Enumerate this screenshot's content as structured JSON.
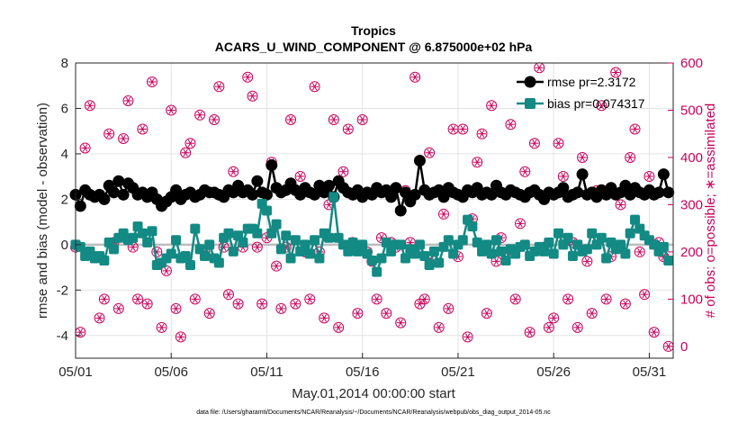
{
  "chart_data": {
    "type": "line",
    "title": "Tropics",
    "subtitle": "ACARS_U_WIND_COMPONENT @ 6.875000e+02 hPa",
    "xlabel": "May.01,2014 00:00:00 start",
    "ylabel": "rmse and bias (model - observation)",
    "y2label": "# of obs: o=possible; ∗=assimilated",
    "footnote": "data file: /Users/gharamti/Documents/NCAR/Reanalysis/~/Documents/NCAR/Reanalysis/webpub/obs_diag_output_2014-05.nc",
    "x_range": [
      0,
      31.25
    ],
    "xticks": [
      0,
      5,
      10,
      15,
      20,
      25,
      30
    ],
    "xtick_labels": [
      "05/01",
      "05/06",
      "05/11",
      "05/16",
      "05/21",
      "05/26",
      "05/31"
    ],
    "ylim": [
      -5,
      8
    ],
    "yticks": [
      -4,
      -2,
      0,
      2,
      4,
      6,
      8
    ],
    "ytick_labels": [
      "-4",
      "-2",
      "0",
      "2",
      "4",
      "6",
      "8"
    ],
    "y2lim": [
      -25,
      600
    ],
    "y2ticks": [
      0,
      100,
      200,
      300,
      400,
      500,
      600
    ],
    "y2tick_labels": [
      "0",
      "100",
      "200",
      "300",
      "400",
      "500",
      "600"
    ],
    "grid": true,
    "legend": {
      "position": "top-right",
      "entries": [
        "rmse pr=2.3172",
        "bias pr=0.074317"
      ]
    },
    "colors": {
      "rmse": "#000000",
      "bias": "#138a84",
      "obs": "#c8005a",
      "zero_line": "#bdbdbd"
    },
    "series": [
      {
        "name": "rmse pr=2.3172",
        "x": [
          0.0,
          0.25,
          0.5,
          0.75,
          1.0,
          1.25,
          1.5,
          1.75,
          2.0,
          2.25,
          2.5,
          2.75,
          3.0,
          3.25,
          3.5,
          3.75,
          4.0,
          4.25,
          4.5,
          4.75,
          5.0,
          5.25,
          5.5,
          5.75,
          6.0,
          6.25,
          6.5,
          6.75,
          7.0,
          7.25,
          7.5,
          7.75,
          8.0,
          8.25,
          8.5,
          8.75,
          9.0,
          9.25,
          9.5,
          9.75,
          10.0,
          10.25,
          10.5,
          10.75,
          11.0,
          11.25,
          11.5,
          11.75,
          12.0,
          12.25,
          12.5,
          12.75,
          13.0,
          13.25,
          13.5,
          13.75,
          14.0,
          14.25,
          14.5,
          14.75,
          15.0,
          15.25,
          15.5,
          15.75,
          16.0,
          16.25,
          16.5,
          16.75,
          17.0,
          17.25,
          17.5,
          17.75,
          18.0,
          18.25,
          18.5,
          18.75,
          19.0,
          19.25,
          19.5,
          19.75,
          20.0,
          20.25,
          20.5,
          20.75,
          21.0,
          21.25,
          21.5,
          21.75,
          22.0,
          22.25,
          22.5,
          22.75,
          23.0,
          23.25,
          23.5,
          23.75,
          24.0,
          24.25,
          24.5,
          24.75,
          25.0,
          25.25,
          25.5,
          25.75,
          26.0,
          26.25,
          26.5,
          26.75,
          27.0,
          27.25,
          27.5,
          27.75,
          28.0,
          28.25,
          28.5,
          28.75,
          29.0,
          29.25,
          29.5,
          29.75,
          30.0,
          30.25,
          30.5,
          30.75,
          31.0
        ],
        "y": [
          2.2,
          1.7,
          2.4,
          2.2,
          2.1,
          2.2,
          2.0,
          2.6,
          2.3,
          2.8,
          2.2,
          2.7,
          2.5,
          2.2,
          2.3,
          2.1,
          2.3,
          2.0,
          1.7,
          1.9,
          2.1,
          2.4,
          2.0,
          2.2,
          2.3,
          2.1,
          2.2,
          2.4,
          2.3,
          2.3,
          2.2,
          2.1,
          2.4,
          2.3,
          2.6,
          2.3,
          2.4,
          2.2,
          2.8,
          2.3,
          2.2,
          3.5,
          2.5,
          2.3,
          2.4,
          2.7,
          2.4,
          2.2,
          2.5,
          2.3,
          2.2,
          2.6,
          2.3,
          2.6,
          2.1,
          2.8,
          2.5,
          2.3,
          2.2,
          2.4,
          2.1,
          2.3,
          2.2,
          2.5,
          2.3,
          2.4,
          2.1,
          2.5,
          1.5,
          2.3,
          1.9,
          2.2,
          3.7,
          2.4,
          2.2,
          2.3,
          2.4,
          2.1,
          2.5,
          2.3,
          2.2,
          2.1,
          2.4,
          2.3,
          2.5,
          2.2,
          2.3,
          2.2,
          2.6,
          2.3,
          2.2,
          2.4,
          2.3,
          2.2,
          2.1,
          2.3,
          2.4,
          2.2,
          2.0,
          2.3,
          2.2,
          2.3,
          2.5,
          2.1,
          2.2,
          2.3,
          3.1,
          2.2,
          2.3,
          2.1,
          2.4,
          2.2,
          2.5,
          2.2,
          2.3,
          2.6,
          2.2,
          2.5,
          2.3,
          2.2,
          2.4,
          2.2,
          2.3,
          3.1,
          2.3
        ]
      },
      {
        "name": "bias pr=0.074317",
        "x": [
          0.0,
          0.25,
          0.5,
          0.75,
          1.0,
          1.25,
          1.5,
          1.75,
          2.0,
          2.25,
          2.5,
          2.75,
          3.0,
          3.25,
          3.5,
          3.75,
          4.0,
          4.25,
          4.5,
          4.75,
          5.0,
          5.25,
          5.5,
          5.75,
          6.0,
          6.25,
          6.5,
          6.75,
          7.0,
          7.25,
          7.5,
          7.75,
          8.0,
          8.25,
          8.5,
          8.75,
          9.0,
          9.25,
          9.5,
          9.75,
          10.0,
          10.25,
          10.5,
          10.75,
          11.0,
          11.25,
          11.5,
          11.75,
          12.0,
          12.25,
          12.5,
          12.75,
          13.0,
          13.25,
          13.5,
          13.75,
          14.0,
          14.25,
          14.5,
          14.75,
          15.0,
          15.25,
          15.5,
          15.75,
          16.0,
          16.25,
          16.5,
          16.75,
          17.0,
          17.25,
          17.5,
          17.75,
          18.0,
          18.25,
          18.5,
          18.75,
          19.0,
          19.25,
          19.5,
          19.75,
          20.0,
          20.25,
          20.5,
          20.75,
          21.0,
          21.25,
          21.5,
          21.75,
          22.0,
          22.25,
          22.5,
          22.75,
          23.0,
          23.25,
          23.5,
          23.75,
          24.0,
          24.25,
          24.5,
          24.75,
          25.0,
          25.25,
          25.5,
          25.75,
          26.0,
          26.25,
          26.5,
          26.75,
          27.0,
          27.25,
          27.5,
          27.75,
          28.0,
          28.25,
          28.5,
          28.75,
          29.0,
          29.25,
          29.5,
          29.75,
          30.0,
          30.25,
          30.5,
          30.75,
          31.0
        ],
        "y": [
          0.0,
          -0.1,
          -0.5,
          -0.3,
          -0.6,
          -0.5,
          -0.7,
          0.1,
          -0.2,
          0.3,
          0.5,
          0.2,
          0.3,
          0.8,
          0.5,
          0.1,
          0.6,
          -0.9,
          -0.8,
          -0.6,
          -0.4,
          0.2,
          -0.6,
          -0.5,
          -0.9,
          0.7,
          -0.2,
          -0.5,
          0.0,
          -0.6,
          -0.8,
          0.3,
          0.5,
          -0.3,
          0.4,
          0.1,
          0.7,
          0.7,
          0.5,
          1.8,
          1.5,
          0.5,
          0.9,
          -0.2,
          0.4,
          -0.6,
          0.2,
          -0.3,
          0.0,
          -0.4,
          0.2,
          -0.6,
          0.5,
          0.3,
          2.1,
          0.3,
          0.0,
          -0.3,
          0.1,
          -0.3,
          0.0,
          -0.4,
          -0.7,
          -1.2,
          -0.6,
          0.1,
          -0.3,
          0.0,
          0.0,
          -0.6,
          -0.2,
          -0.4,
          0.0,
          -0.5,
          -0.9,
          -0.3,
          -0.8,
          -0.1,
          0.2,
          -0.4,
          0.0,
          0.2,
          1.1,
          0.8,
          0.1,
          -0.3,
          0.0,
          -0.4,
          0.2,
          -0.3,
          -0.7,
          -0.2,
          -0.4,
          -0.1,
          0.0,
          -0.5,
          -0.3,
          -0.1,
          -0.3,
          0.1,
          -0.4,
          0.5,
          0.0,
          0.3,
          -0.5,
          0.0,
          -0.3,
          -0.2,
          0.5,
          0.0,
          0.3,
          -0.6,
          0.1,
          -0.2,
          0.0,
          -0.4,
          0.5,
          1.1,
          0.7,
          0.4,
          0.2,
          0.0,
          -0.3,
          -0.1,
          -0.7
        ]
      },
      {
        "name": "# of obs possible",
        "axis": "right",
        "marker": "circle",
        "x": [
          0.0,
          0.25,
          0.5,
          0.75,
          1.0,
          1.25,
          1.5,
          1.75,
          2.0,
          2.25,
          2.5,
          2.75,
          3.0,
          3.25,
          3.5,
          3.75,
          4.0,
          4.25,
          4.5,
          4.75,
          5.0,
          5.25,
          5.5,
          5.75,
          6.0,
          6.25,
          6.5,
          6.75,
          7.0,
          7.25,
          7.5,
          7.75,
          8.0,
          8.25,
          8.5,
          8.75,
          9.0,
          9.25,
          9.5,
          9.75,
          10.0,
          10.25,
          10.5,
          10.75,
          11.0,
          11.25,
          11.5,
          11.75,
          12.0,
          12.25,
          12.5,
          12.75,
          13.0,
          13.25,
          13.5,
          13.75,
          14.0,
          14.25,
          14.5,
          14.75,
          15.0,
          15.25,
          15.5,
          15.75,
          16.0,
          16.25,
          16.5,
          16.75,
          17.0,
          17.25,
          17.5,
          17.75,
          18.0,
          18.25,
          18.5,
          18.75,
          19.0,
          19.25,
          19.5,
          19.75,
          20.0,
          20.25,
          20.5,
          20.75,
          21.0,
          21.25,
          21.5,
          21.75,
          22.0,
          22.25,
          22.5,
          22.75,
          23.0,
          23.25,
          23.5,
          23.75,
          24.0,
          24.25,
          24.5,
          24.75,
          25.0,
          25.25,
          25.5,
          25.75,
          26.0,
          26.25,
          26.5,
          26.75,
          27.0,
          27.25,
          27.5,
          27.75,
          28.0,
          28.25,
          28.5,
          28.75,
          29.0,
          29.25,
          29.5,
          29.75,
          30.0,
          30.25,
          30.5,
          30.75,
          31.0
        ],
        "y": [
          210,
          30,
          420,
          510,
          190,
          60,
          100,
          450,
          220,
          80,
          440,
          520,
          210,
          100,
          460,
          90,
          560,
          200,
          40,
          160,
          500,
          80,
          20,
          410,
          430,
          100,
          490,
          200,
          70,
          480,
          550,
          210,
          110,
          370,
          90,
          210,
          570,
          530,
          210,
          90,
          230,
          390,
          170,
          80,
          210,
          480,
          90,
          360,
          200,
          100,
          550,
          200,
          60,
          300,
          480,
          40,
          370,
          460,
          220,
          70,
          480,
          200,
          180,
          100,
          230,
          70,
          220,
          210,
          50,
          330,
          220,
          570,
          90,
          100,
          410,
          180,
          40,
          280,
          80,
          460,
          190,
          460,
          20,
          270,
          390,
          450,
          70,
          510,
          180,
          230,
          200,
          470,
          100,
          260,
          370,
          30,
          430,
          590,
          210,
          40,
          60,
          430,
          360,
          100,
          220,
          40,
          400,
          180,
          70,
          330,
          510,
          100,
          190,
          580,
          300,
          90,
          400,
          460,
          200,
          110,
          360,
          30,
          220,
          190,
          0
        ]
      },
      {
        "name": "# of obs assimilated",
        "axis": "right",
        "marker": "asterisk",
        "same_as": "# of obs possible"
      }
    ]
  }
}
